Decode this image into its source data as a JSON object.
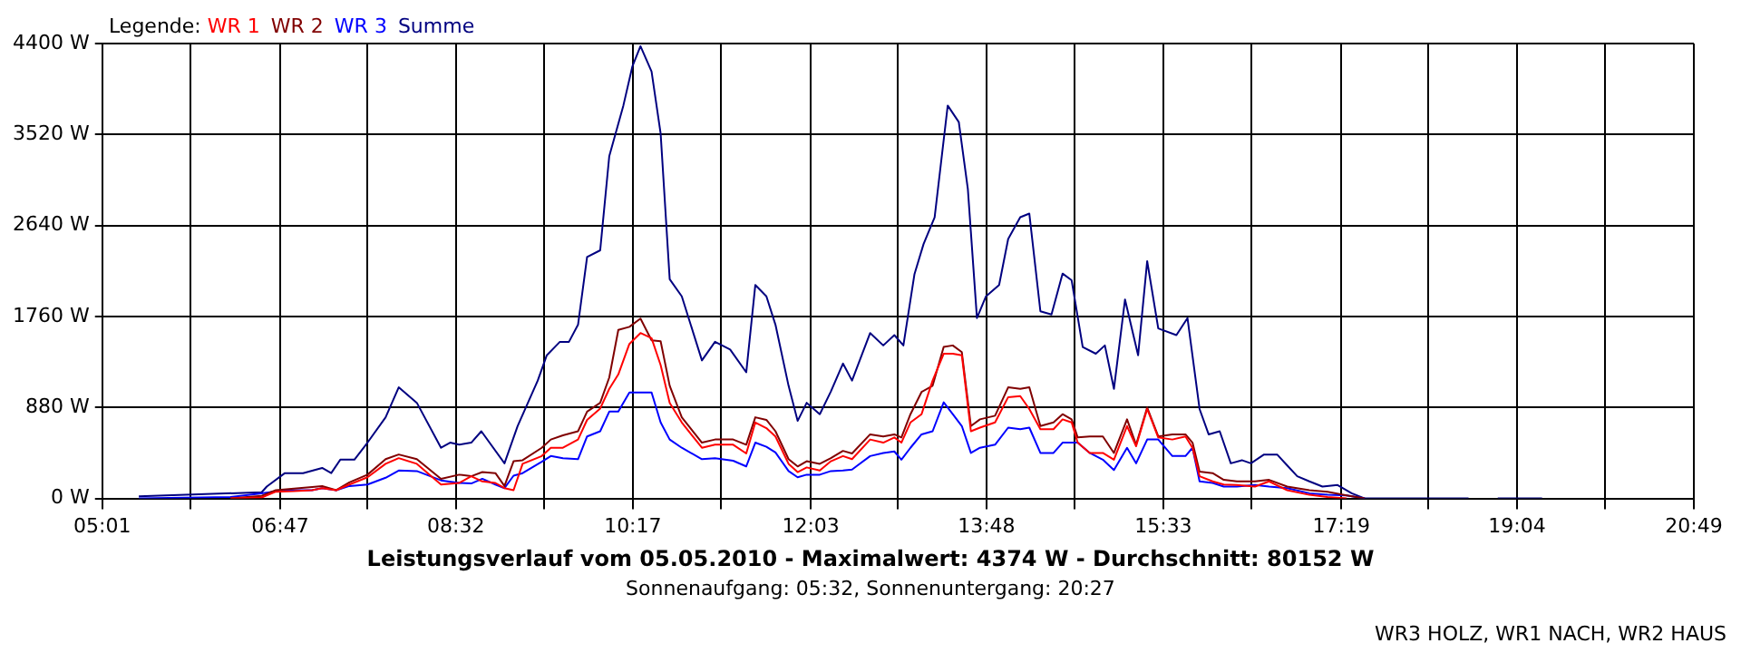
{
  "chart_data": {
    "type": "line",
    "title": "Leistungsverlauf vom 05.05.2010 - Maximalwert: 4374 W - Durchschnitt: 80152 W",
    "subtitle": "Sonnenaufgang: 05:32, Sonnenuntergang: 20:27",
    "annotations": [
      "WR3 HOLZ, WR1 NACH, WR2 HAUS"
    ],
    "legend_title": "Legende:",
    "legend": "top left",
    "grid": true,
    "xlim": [
      5.0167,
      20.8167
    ],
    "xticks": [
      {
        "value": 5.0167,
        "label": "05:01"
      },
      {
        "value": 5.8944,
        "label": null
      },
      {
        "value": 6.7833,
        "label": "06:47"
      },
      {
        "value": 7.65,
        "label": null
      },
      {
        "value": 8.5278,
        "label": "08:32"
      },
      {
        "value": 9.4056,
        "label": null
      },
      {
        "value": 10.2833,
        "label": "10:17"
      },
      {
        "value": 11.1611,
        "label": null
      },
      {
        "value": 12.05,
        "label": "12:03"
      },
      {
        "value": 12.9167,
        "label": null
      },
      {
        "value": 13.7944,
        "label": "13:48"
      },
      {
        "value": 14.6722,
        "label": null
      },
      {
        "value": 15.55,
        "label": "15:33"
      },
      {
        "value": 16.4278,
        "label": null
      },
      {
        "value": 17.3167,
        "label": "17:19"
      },
      {
        "value": 18.1833,
        "label": null
      },
      {
        "value": 19.0611,
        "label": "19:04"
      },
      {
        "value": 19.9389,
        "label": null
      },
      {
        "value": 20.8167,
        "label": "20:49"
      }
    ],
    "ylim": [
      0,
      4400
    ],
    "yticks": [
      {
        "value": 0,
        "label": "0 W"
      },
      {
        "value": 880,
        "label": "880 W"
      },
      {
        "value": 1760,
        "label": "1760 W"
      },
      {
        "value": 2640,
        "label": "2640 W"
      },
      {
        "value": 3520,
        "label": "3520 W"
      },
      {
        "value": 4400,
        "label": "4400 W"
      }
    ],
    "x": [
      5.38,
      6.29,
      6.6,
      6.74,
      6.92,
      7.1,
      7.2,
      7.34,
      7.47,
      7.65,
      7.83,
      7.96,
      8.14,
      8.38,
      8.56,
      8.68,
      8.79,
      8.92,
      9.01,
      9.1,
      9.19,
      9.38,
      9.47,
      9.59,
      9.74,
      9.83,
      9.96,
      10.05,
      10.14,
      10.25,
      10.36,
      10.47,
      10.56,
      10.65,
      10.77,
      10.97,
      11.1,
      11.28,
      11.41,
      11.5,
      11.61,
      11.7,
      11.83,
      11.92,
      12.01,
      12.14,
      12.25,
      12.37,
      12.46,
      12.64,
      12.77,
      12.88,
      12.95,
      13.04,
      13.15,
      13.26,
      13.37,
      13.46,
      13.55,
      13.64,
      13.73,
      13.88,
      14.01,
      14.13,
      14.22,
      14.33,
      14.46,
      14.55,
      14.64,
      14.7,
      14.82,
      14.95,
      15.06,
      15.19,
      15.28,
      15.39,
      15.5,
      15.64,
      15.77,
      15.84,
      15.91,
      16.04,
      16.15,
      16.28,
      16.46,
      16.6,
      16.78,
      17.0,
      17.18,
      17.37,
      17.55
    ],
    "series": [
      {
        "name": "WR 1",
        "color": "#ff0000",
        "values": [
          null,
          0,
          10,
          65,
          70,
          80,
          100,
          80,
          135,
          205,
          335,
          390,
          335,
          135,
          150,
          215,
          165,
          150,
          100,
          80,
          335,
          410,
          490,
          490,
          570,
          760,
          870,
          1060,
          1200,
          1495,
          1600,
          1550,
          1290,
          925,
          735,
          490,
          520,
          520,
          435,
          735,
          680,
          600,
          335,
          255,
          300,
          270,
          360,
          410,
          380,
          570,
          540,
          590,
          540,
          735,
          815,
          1140,
          1400,
          1400,
          1385,
          650,
          685,
          735,
          980,
          990,
          865,
          670,
          670,
          765,
          735,
          540,
          440,
          440,
          375,
          700,
          505,
          865,
          590,
          570,
          600,
          490,
          215,
          165,
          135,
          130,
          115,
          165,
          80,
          35,
          15,
          0,
          null
        ]
      },
      {
        "name": "WR 2",
        "color": "#800000",
        "values": [
          null,
          0,
          25,
          80,
          95,
          110,
          120,
          80,
          155,
          230,
          380,
          425,
          380,
          190,
          230,
          215,
          255,
          245,
          120,
          360,
          370,
          490,
          570,
          610,
          650,
          840,
          925,
          1170,
          1630,
          1660,
          1740,
          1530,
          1520,
          1090,
          785,
          540,
          570,
          570,
          520,
          785,
          760,
          650,
          380,
          310,
          360,
          335,
          390,
          460,
          435,
          620,
          600,
          620,
          590,
          815,
          1030,
          1090,
          1465,
          1480,
          1415,
          700,
          765,
          800,
          1075,
          1060,
          1075,
          700,
          735,
          815,
          765,
          590,
          600,
          600,
          440,
          765,
          520,
          880,
          600,
          620,
          620,
          540,
          260,
          245,
          180,
          165,
          165,
          180,
          115,
          80,
          65,
          30,
          0
        ]
      },
      {
        "name": "WR 3",
        "color": "#0000ff",
        "values": [
          0,
          15,
          50,
          70,
          80,
          80,
          100,
          80,
          120,
          135,
          200,
          270,
          265,
          175,
          150,
          145,
          190,
          135,
          100,
          220,
          245,
          355,
          410,
          390,
          380,
          600,
          650,
          840,
          840,
          1025,
          1025,
          1025,
          735,
          570,
          490,
          380,
          390,
          365,
          310,
          540,
          500,
          445,
          265,
          205,
          230,
          230,
          265,
          270,
          280,
          410,
          440,
          455,
          375,
          490,
          620,
          650,
          930,
          815,
          700,
          440,
          490,
          520,
          685,
          670,
          685,
          440,
          440,
          540,
          540,
          540,
          440,
          375,
          275,
          490,
          340,
          570,
          570,
          410,
          410,
          490,
          165,
          150,
          115,
          115,
          130,
          115,
          100,
          50,
          35,
          30,
          0
        ]
      },
      {
        "name": "Summe",
        "color": "#000080",
        "x": [
          5.38,
          6.6,
          6.65,
          6.83,
          7.01,
          7.2,
          7.29,
          7.38,
          7.52,
          7.65,
          7.83,
          7.96,
          8.14,
          8.38,
          8.47,
          8.56,
          8.68,
          8.78,
          9.01,
          9.14,
          9.34,
          9.43,
          9.56,
          9.65,
          9.74,
          9.83,
          9.96,
          10.05,
          10.19,
          10.28,
          10.36,
          10.47,
          10.56,
          10.65,
          10.77,
          10.97,
          11.1,
          11.25,
          11.41,
          11.5,
          11.61,
          11.7,
          11.83,
          11.92,
          12.01,
          12.14,
          12.25,
          12.37,
          12.46,
          12.64,
          12.77,
          12.88,
          12.97,
          13.08,
          13.17,
          13.28,
          13.41,
          13.52,
          13.61,
          13.7,
          13.79,
          13.92,
          14.01,
          14.13,
          14.22,
          14.33,
          14.44,
          14.55,
          14.64,
          14.75,
          14.88,
          14.97,
          15.06,
          15.17,
          15.3,
          15.39,
          15.5,
          15.68,
          15.79,
          15.91,
          16.0,
          16.11,
          16.22,
          16.33,
          16.42,
          16.55,
          16.68,
          16.77,
          16.88,
          17.0,
          17.13,
          17.28,
          17.42,
          17.55,
          18.58,
          18.7,
          18.87,
          19.31
        ],
        "values": [
          20,
          60,
          115,
          245,
          245,
          295,
          245,
          375,
          375,
          540,
          785,
          1075,
          925,
          490,
          540,
          520,
          540,
          650,
          340,
          700,
          1140,
          1385,
          1515,
          1515,
          1680,
          2335,
          2400,
          3310,
          3800,
          4180,
          4374,
          4130,
          3530,
          2120,
          1955,
          1335,
          1515,
          1440,
          1220,
          2065,
          1955,
          1680,
          1090,
          750,
          925,
          815,
          1035,
          1305,
          1140,
          1600,
          1480,
          1580,
          1480,
          2170,
          2460,
          2720,
          3800,
          3640,
          2990,
          1745,
          1955,
          2065,
          2510,
          2720,
          2755,
          1810,
          1780,
          2175,
          2110,
          1465,
          1400,
          1480,
          1060,
          1925,
          1385,
          2295,
          1645,
          1580,
          1745,
          865,
          620,
          650,
          340,
          370,
          340,
          425,
          425,
          330,
          215,
          165,
          115,
          130,
          50,
          0,
          0,
          null,
          0,
          0
        ]
      }
    ]
  }
}
